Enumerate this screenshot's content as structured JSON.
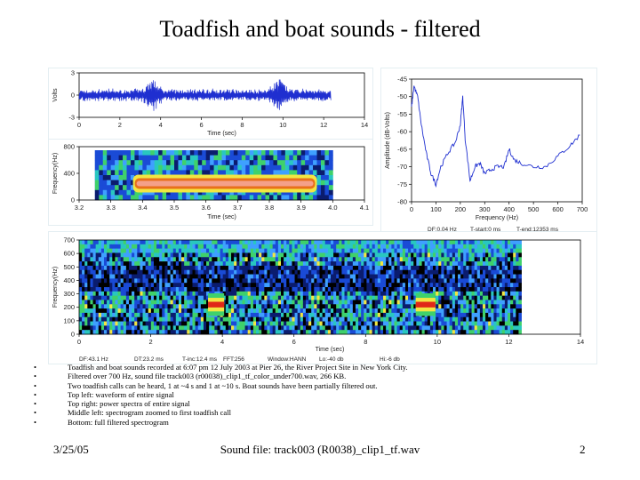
{
  "slide": {
    "title": "Toadfish and boat sounds - filtered",
    "footer_date": "3/25/05",
    "footer_center": "Sound file: track003 (R0038)_clip1_tf.wav",
    "page_number": "2"
  },
  "bullets": [
    "Toadfish and boat sounds recorded at 6:07 pm 12 July 2003 at Pier 26, the River Project Site in New York City.",
    "Filtered over 700 Hz, sound file track003 (r00038)_clip1_tf_color_under700.wav, 266 KB.",
    "Two toadfish calls can be heard, 1 at ~4 s and 1 at ~10 s. Boat sounds have been partially filtered out.",
    "Top left: waveform of entire signal",
    "Top right: power spectra of entire signal",
    "Middle left: spectrogram zoomed to first toadfish call",
    "Bottom: full filtered spectrogram"
  ],
  "chart_data": [
    {
      "type": "line",
      "ylabel": "Volts",
      "xlabel": "Time (sec)",
      "xlim": [
        0,
        14
      ],
      "ylim": [
        -3,
        3
      ],
      "x_ticks": [
        "0",
        "2",
        "4",
        "6",
        "8",
        "10",
        "12",
        "14"
      ],
      "y_ticks": [
        "3",
        "0",
        "-3"
      ],
      "signal_end_sec": 12.35,
      "series": [
        {
          "color": "#1f2fd0",
          "bursts_at_sec": [
            3.6,
            9.8
          ]
        }
      ]
    },
    {
      "type": "line",
      "ylabel": "Amplitude (dB-Volts)",
      "xlabel": "Frequency (Hz)",
      "xlim": [
        0,
        700
      ],
      "ylim": [
        -80,
        -45
      ],
      "x_ticks": [
        "0",
        "100",
        "200",
        "300",
        "400",
        "500",
        "600",
        "700"
      ],
      "y_ticks": [
        "-45",
        "-50",
        "-55",
        "-60",
        "-65",
        "-70",
        "-75",
        "-80"
      ],
      "x": [
        0,
        10,
        25,
        40,
        60,
        80,
        100,
        120,
        150,
        180,
        200,
        210,
        220,
        240,
        260,
        280,
        300,
        320,
        350,
        380,
        400,
        420,
        450,
        500,
        550,
        600,
        650,
        690
      ],
      "y": [
        -53,
        -47,
        -50,
        -58,
        -66,
        -72,
        -75,
        -70,
        -66,
        -63,
        -58,
        -50,
        -62,
        -74,
        -70,
        -69,
        -72,
        -71,
        -70,
        -70,
        -65,
        -68,
        -69,
        -70,
        -70,
        -67,
        -64,
        -61
      ],
      "params": [
        "DF:0.04 Hz",
        "T-start:0 ms",
        "T-end:12353 ms"
      ],
      "series": [
        {
          "color": "#1f2fd0"
        }
      ]
    },
    {
      "type": "heatmap",
      "ylabel": "Frequency(Hz)",
      "xlabel": "Time (sec)",
      "xlim": [
        3.2,
        4.1
      ],
      "ylim": [
        0,
        800
      ],
      "x_ticks": [
        "3.2",
        "3.3",
        "3.4",
        "3.5",
        "3.6",
        "3.7",
        "3.8",
        "3.9",
        "4.0",
        "4.1"
      ],
      "y_ticks": [
        "800",
        "400",
        "0"
      ],
      "data_extent_sec": [
        3.25,
        4.0
      ],
      "call": {
        "start_sec": 3.37,
        "end_sec": 3.95,
        "freq_hz": 220
      }
    },
    {
      "type": "heatmap",
      "ylabel": "Frequency(Hz)",
      "xlabel": "Time (sec)",
      "xlim": [
        0,
        14
      ],
      "ylim": [
        0,
        700
      ],
      "x_ticks": [
        "0",
        "2",
        "4",
        "6",
        "8",
        "10",
        "12",
        "14"
      ],
      "y_ticks": [
        "700",
        "600",
        "500",
        "400",
        "300",
        "200",
        "100",
        "0"
      ],
      "data_extent_sec": [
        0,
        12.35
      ],
      "calls": [
        {
          "start_sec": 3.6,
          "end_sec": 4.05,
          "freq_hz": 220
        },
        {
          "start_sec": 9.4,
          "end_sec": 9.95,
          "freq_hz": 220
        }
      ],
      "params": [
        "DF:43.1 Hz",
        "DT:23.2 ms",
        "T-inc:12.4 ms",
        "FFT:256",
        "Window:HANN",
        "Lo:-40 db",
        "Hi:-6 db"
      ]
    }
  ]
}
